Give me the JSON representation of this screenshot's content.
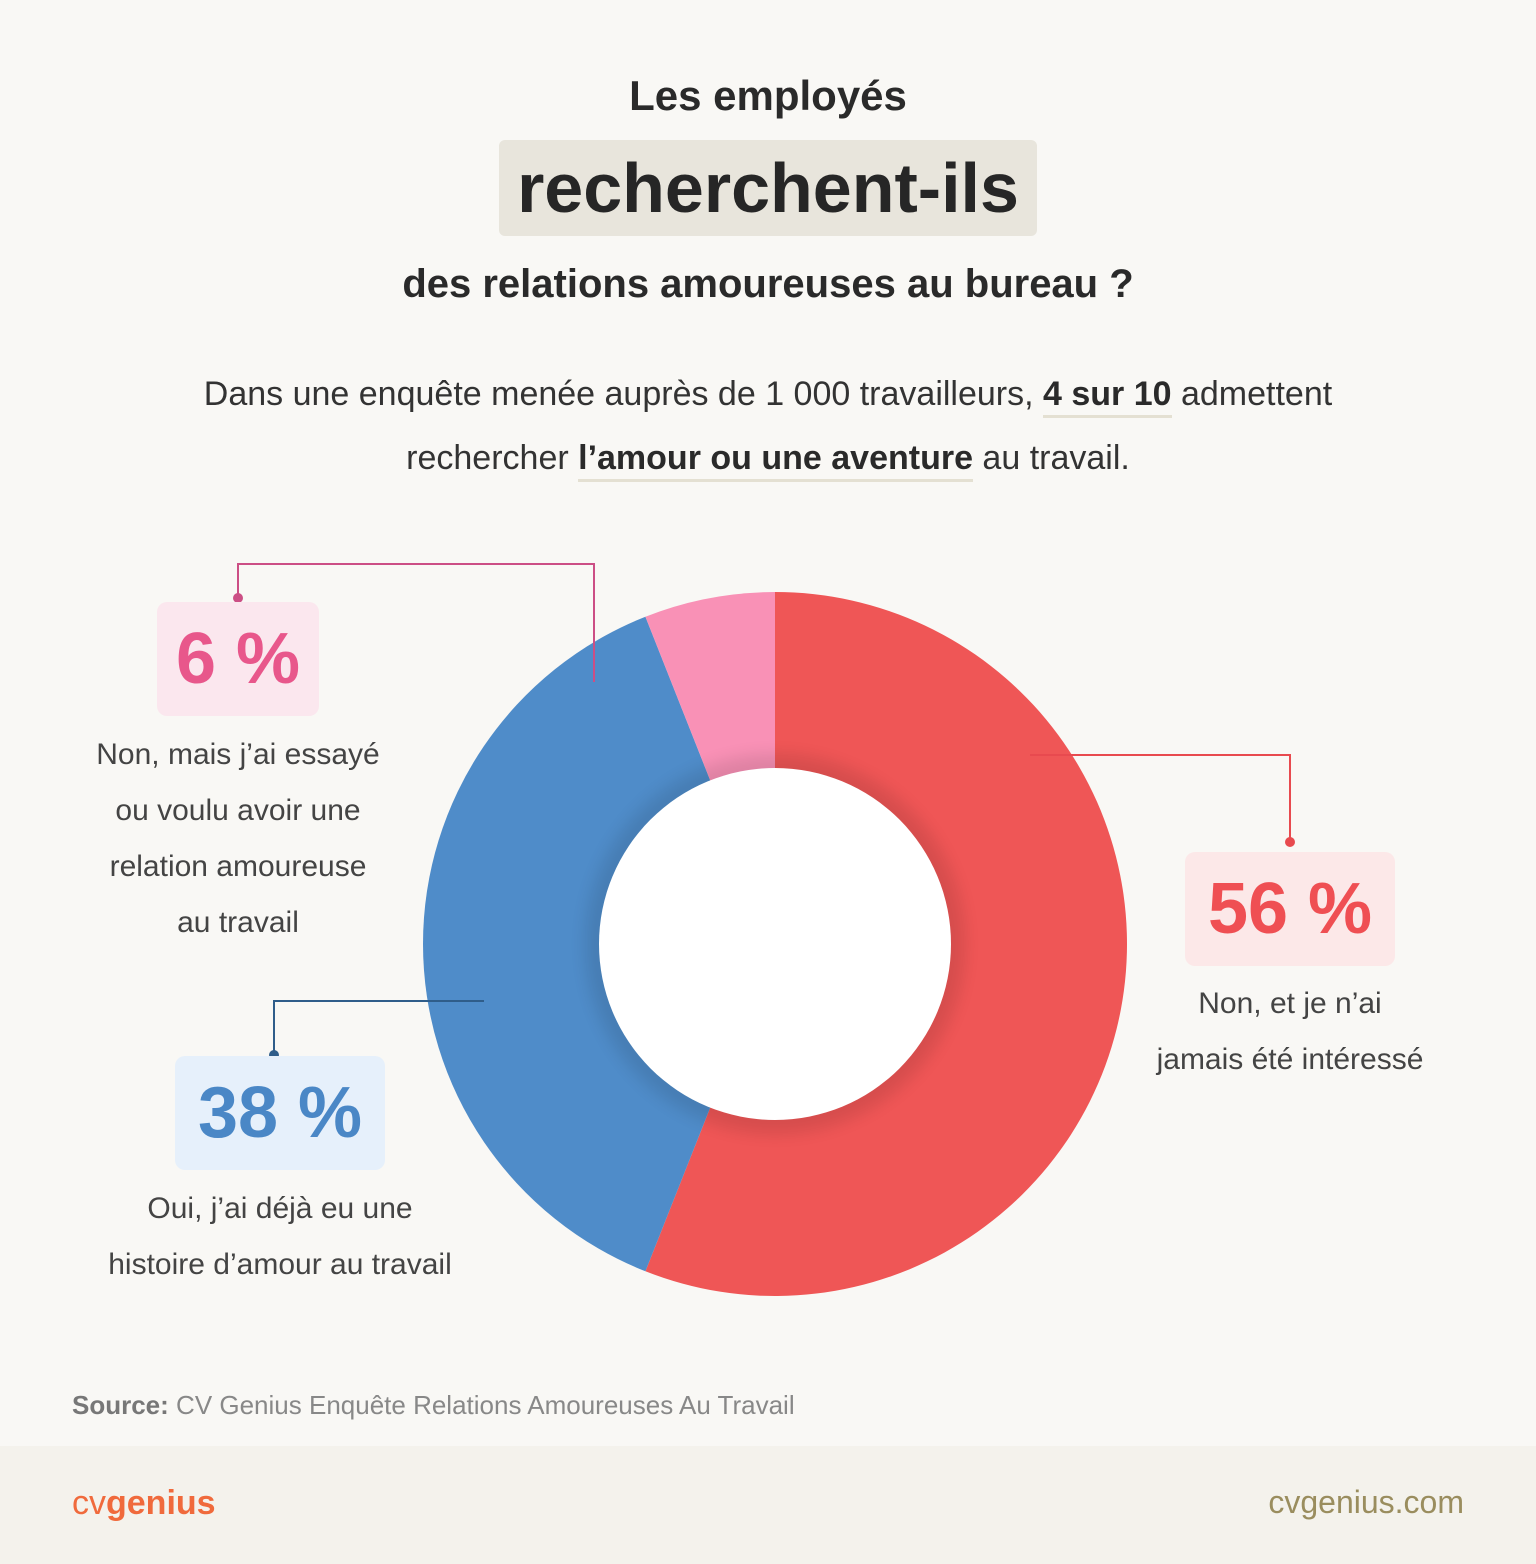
{
  "title": {
    "line1": "Les employés",
    "highlight": "recherchent-ils",
    "line3": "des relations amoureuses au bureau ?"
  },
  "intro": {
    "part1": "Dans une enquête menée auprès de 1 000 travailleurs, ",
    "em1": "4 sur 10",
    "part2": " admettent",
    "part3": "rechercher ",
    "em2": "l’amour ou une aventure",
    "part4": " au travail."
  },
  "chart_data": {
    "type": "pie",
    "donut": true,
    "title": "",
    "slices": [
      {
        "label": "Non, et je n’ai jamais été intéressé",
        "value": 56,
        "display": "56 %",
        "color": "#ef5656",
        "label_lines": [
          "Non, et je n’ai",
          "jamais été intéressé"
        ]
      },
      {
        "label": "Oui, j’ai déjà eu une histoire d’amour au travail",
        "value": 38,
        "display": "38 %",
        "color": "#4f8cc9",
        "label_lines": [
          "Oui, j’ai déjà eu une",
          "histoire d’amour au travail"
        ]
      },
      {
        "label": "Non, mais j’ai essayé ou voulu avoir une relation amoureuse au travail",
        "value": 6,
        "display": "6 %",
        "color": "#f991b6",
        "label_lines": [
          "Non, mais j’ai essayé",
          "ou voulu avoir une",
          "relation amoureuse",
          "au travail"
        ]
      }
    ]
  },
  "source": {
    "label": "Source:",
    "text": " CV Genius Enquête Relations Amoureuses Au Travail"
  },
  "footer": {
    "brand_cv": "cv",
    "brand_genius": "genius",
    "site": "cvgenius.com"
  }
}
